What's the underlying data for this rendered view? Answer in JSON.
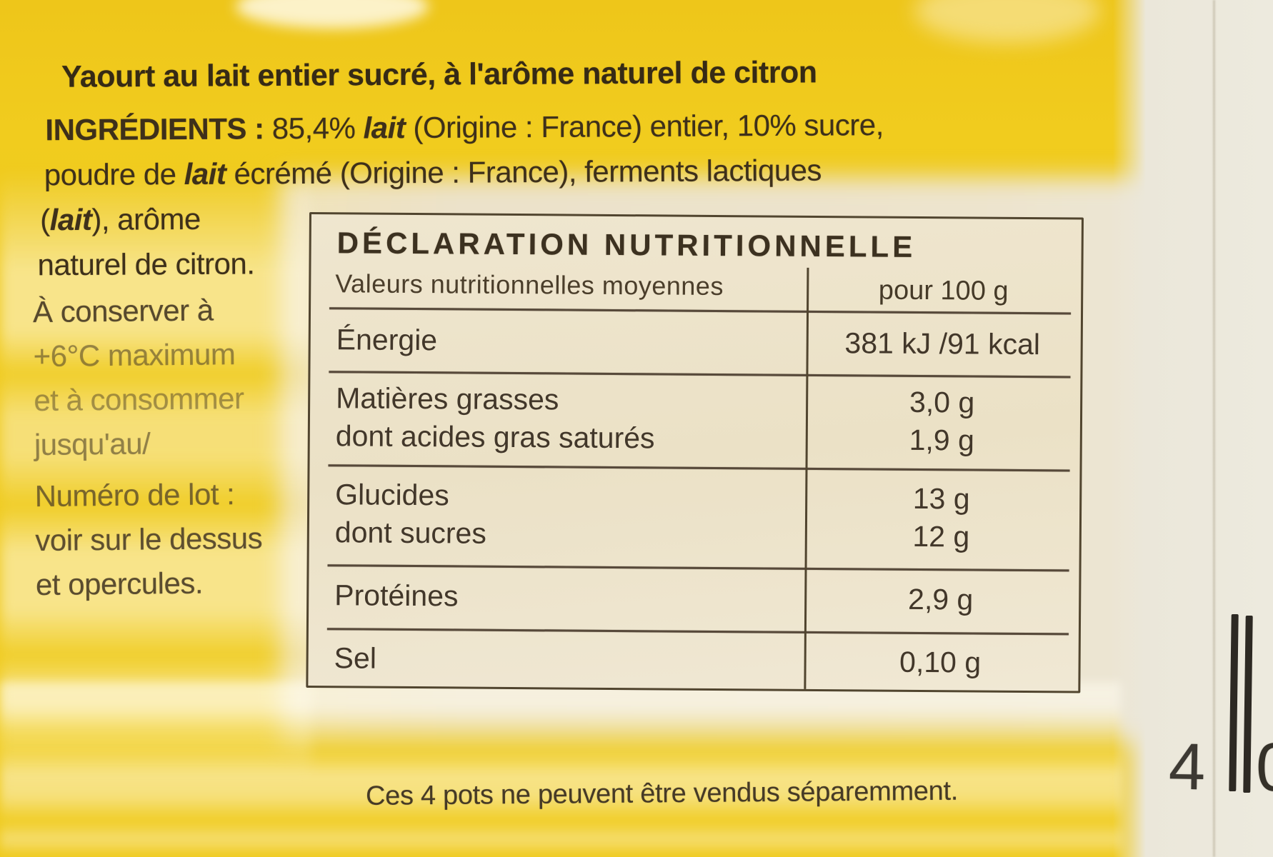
{
  "product": {
    "title": "Yaourt au lait entier sucré, à l'arôme naturel de citron"
  },
  "ingredients": {
    "heading": "INGRÉDIENTS :",
    "pct": "85,4%",
    "milk": "lait",
    "after_milk1": "(Origine : France) entier, 10% sucre,",
    "line2_pre": "poudre de",
    "line2_post": "écrémé (Origine : France), ferments lactiques",
    "line3_open": "(",
    "line3_close": "), arôme",
    "line4": "naturel de citron."
  },
  "storage": {
    "lines": [
      "À conserver à",
      "+6°C maximum",
      "et à consommer",
      "jusqu'au/",
      "Numéro de lot :",
      "voir sur le dessus",
      "et opercules."
    ]
  },
  "nutrition": {
    "title": "DÉCLARATION NUTRITIONNELLE",
    "columns": {
      "label": "Valeurs nutritionnelles moyennes",
      "value": "pour 100 g"
    },
    "rows": [
      {
        "label": "Énergie",
        "value": "381 kJ /91 kcal"
      },
      {
        "label": "Matières grasses",
        "value": "3,0 g"
      },
      {
        "label": "dont acides gras saturés",
        "value": "1,9 g"
      },
      {
        "label": "Glucides",
        "value": "13 g"
      },
      {
        "label": "dont sucres",
        "value": "12 g"
      },
      {
        "label": "Protéines",
        "value": "2,9 g"
      },
      {
        "label": "Sel",
        "value": "0,10 g"
      }
    ]
  },
  "footer": {
    "note": "Ces 4 pots ne peuvent être vendus séparemment."
  },
  "side_panel": {
    "pack_count": "4",
    "partial_digit": "0"
  }
}
